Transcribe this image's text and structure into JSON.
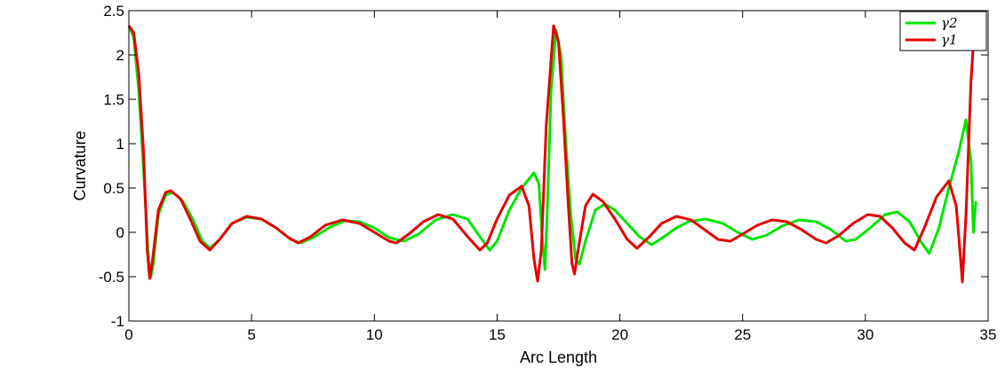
{
  "chart_data": {
    "type": "line",
    "title": "",
    "xlabel": "Arc Length",
    "ylabel": "Curvature",
    "xlim": [
      0,
      35
    ],
    "ylim": [
      -1,
      2.5
    ],
    "xticks": [
      0,
      5,
      10,
      15,
      20,
      25,
      30,
      35
    ],
    "yticks": [
      -1,
      -0.5,
      0,
      0.5,
      1,
      1.5,
      2,
      2.5
    ],
    "grid": false,
    "legend_position": "top-right",
    "series": [
      {
        "name": "γ2",
        "color": "#00e400",
        "points": [
          [
            0,
            2.33
          ],
          [
            0.2,
            2.2
          ],
          [
            0.4,
            1.6
          ],
          [
            0.6,
            0.7
          ],
          [
            0.8,
            -0.3
          ],
          [
            0.9,
            -0.5
          ],
          [
            1.0,
            -0.35
          ],
          [
            1.2,
            0.2
          ],
          [
            1.5,
            0.42
          ],
          [
            1.8,
            0.45
          ],
          [
            2.2,
            0.35
          ],
          [
            2.6,
            0.15
          ],
          [
            3.0,
            -0.1
          ],
          [
            3.3,
            -0.18
          ],
          [
            3.7,
            -0.08
          ],
          [
            4.2,
            0.1
          ],
          [
            4.8,
            0.17
          ],
          [
            5.4,
            0.15
          ],
          [
            6.0,
            0.05
          ],
          [
            6.6,
            -0.08
          ],
          [
            7.0,
            -0.12
          ],
          [
            7.5,
            -0.06
          ],
          [
            8.2,
            0.06
          ],
          [
            8.8,
            0.13
          ],
          [
            9.4,
            0.12
          ],
          [
            10.0,
            0.05
          ],
          [
            10.6,
            -0.06
          ],
          [
            11.2,
            -0.1
          ],
          [
            11.8,
            -0.02
          ],
          [
            12.5,
            0.14
          ],
          [
            13.2,
            0.2
          ],
          [
            13.8,
            0.15
          ],
          [
            14.3,
            -0.05
          ],
          [
            14.7,
            -0.2
          ],
          [
            15.0,
            -0.1
          ],
          [
            15.5,
            0.25
          ],
          [
            16.0,
            0.5
          ],
          [
            16.5,
            0.67
          ],
          [
            16.7,
            0.55
          ],
          [
            16.85,
            -0.1
          ],
          [
            16.95,
            -0.42
          ],
          [
            17.05,
            0.3
          ],
          [
            17.2,
            1.6
          ],
          [
            17.4,
            2.28
          ],
          [
            17.6,
            2.0
          ],
          [
            17.8,
            1.0
          ],
          [
            18.0,
            0.2
          ],
          [
            18.2,
            -0.3
          ],
          [
            18.35,
            -0.36
          ],
          [
            18.6,
            -0.1
          ],
          [
            19.0,
            0.25
          ],
          [
            19.4,
            0.32
          ],
          [
            19.8,
            0.25
          ],
          [
            20.3,
            0.1
          ],
          [
            20.8,
            -0.05
          ],
          [
            21.3,
            -0.14
          ],
          [
            21.8,
            -0.05
          ],
          [
            22.3,
            0.05
          ],
          [
            22.8,
            0.12
          ],
          [
            23.5,
            0.15
          ],
          [
            24.2,
            0.1
          ],
          [
            24.8,
            0.0
          ],
          [
            25.4,
            -0.08
          ],
          [
            26.0,
            -0.03
          ],
          [
            26.6,
            0.07
          ],
          [
            27.3,
            0.14
          ],
          [
            28.0,
            0.12
          ],
          [
            28.6,
            0.03
          ],
          [
            29.2,
            -0.1
          ],
          [
            29.6,
            -0.08
          ],
          [
            30.2,
            0.05
          ],
          [
            30.8,
            0.2
          ],
          [
            31.3,
            0.23
          ],
          [
            31.8,
            0.12
          ],
          [
            32.3,
            -0.12
          ],
          [
            32.6,
            -0.24
          ],
          [
            33.0,
            0.05
          ],
          [
            33.4,
            0.5
          ],
          [
            33.8,
            0.9
          ],
          [
            34.1,
            1.27
          ],
          [
            34.3,
            0.8
          ],
          [
            34.4,
            0.0
          ],
          [
            34.5,
            0.35
          ]
        ]
      },
      {
        "name": "γ1",
        "color": "#e40000",
        "points": [
          [
            0,
            2.33
          ],
          [
            0.2,
            2.25
          ],
          [
            0.4,
            1.8
          ],
          [
            0.6,
            0.9
          ],
          [
            0.75,
            -0.2
          ],
          [
            0.85,
            -0.52
          ],
          [
            0.95,
            -0.35
          ],
          [
            1.2,
            0.25
          ],
          [
            1.5,
            0.45
          ],
          [
            1.7,
            0.47
          ],
          [
            2.1,
            0.38
          ],
          [
            2.5,
            0.15
          ],
          [
            2.9,
            -0.1
          ],
          [
            3.3,
            -0.2
          ],
          [
            3.7,
            -0.08
          ],
          [
            4.2,
            0.1
          ],
          [
            4.8,
            0.18
          ],
          [
            5.4,
            0.15
          ],
          [
            6.0,
            0.05
          ],
          [
            6.5,
            -0.06
          ],
          [
            6.9,
            -0.12
          ],
          [
            7.4,
            -0.05
          ],
          [
            8.0,
            0.08
          ],
          [
            8.7,
            0.14
          ],
          [
            9.4,
            0.1
          ],
          [
            10.0,
            0.0
          ],
          [
            10.6,
            -0.1
          ],
          [
            10.9,
            -0.12
          ],
          [
            11.4,
            -0.02
          ],
          [
            12.0,
            0.12
          ],
          [
            12.6,
            0.2
          ],
          [
            13.2,
            0.15
          ],
          [
            13.8,
            -0.05
          ],
          [
            14.3,
            -0.2
          ],
          [
            14.6,
            -0.12
          ],
          [
            15.0,
            0.15
          ],
          [
            15.5,
            0.42
          ],
          [
            16.0,
            0.52
          ],
          [
            16.3,
            0.3
          ],
          [
            16.5,
            -0.3
          ],
          [
            16.65,
            -0.55
          ],
          [
            16.8,
            -0.2
          ],
          [
            17.0,
            1.2
          ],
          [
            17.3,
            2.33
          ],
          [
            17.5,
            2.15
          ],
          [
            17.7,
            1.3
          ],
          [
            17.9,
            0.3
          ],
          [
            18.05,
            -0.35
          ],
          [
            18.15,
            -0.47
          ],
          [
            18.3,
            -0.2
          ],
          [
            18.6,
            0.3
          ],
          [
            18.9,
            0.43
          ],
          [
            19.3,
            0.35
          ],
          [
            19.8,
            0.15
          ],
          [
            20.3,
            -0.08
          ],
          [
            20.7,
            -0.18
          ],
          [
            21.2,
            -0.05
          ],
          [
            21.7,
            0.1
          ],
          [
            22.3,
            0.18
          ],
          [
            22.9,
            0.14
          ],
          [
            23.5,
            0.02
          ],
          [
            24.0,
            -0.08
          ],
          [
            24.5,
            -0.1
          ],
          [
            25.0,
            -0.02
          ],
          [
            25.6,
            0.08
          ],
          [
            26.2,
            0.14
          ],
          [
            26.8,
            0.12
          ],
          [
            27.4,
            0.03
          ],
          [
            28.0,
            -0.08
          ],
          [
            28.4,
            -0.12
          ],
          [
            28.9,
            -0.04
          ],
          [
            29.5,
            0.1
          ],
          [
            30.1,
            0.2
          ],
          [
            30.6,
            0.18
          ],
          [
            31.1,
            0.05
          ],
          [
            31.6,
            -0.12
          ],
          [
            32.0,
            -0.2
          ],
          [
            32.4,
            0.05
          ],
          [
            32.9,
            0.4
          ],
          [
            33.4,
            0.58
          ],
          [
            33.7,
            0.3
          ],
          [
            33.85,
            -0.2
          ],
          [
            33.95,
            -0.56
          ],
          [
            34.1,
            0.2
          ],
          [
            34.3,
            1.7
          ],
          [
            34.45,
            2.33
          ]
        ]
      }
    ]
  }
}
